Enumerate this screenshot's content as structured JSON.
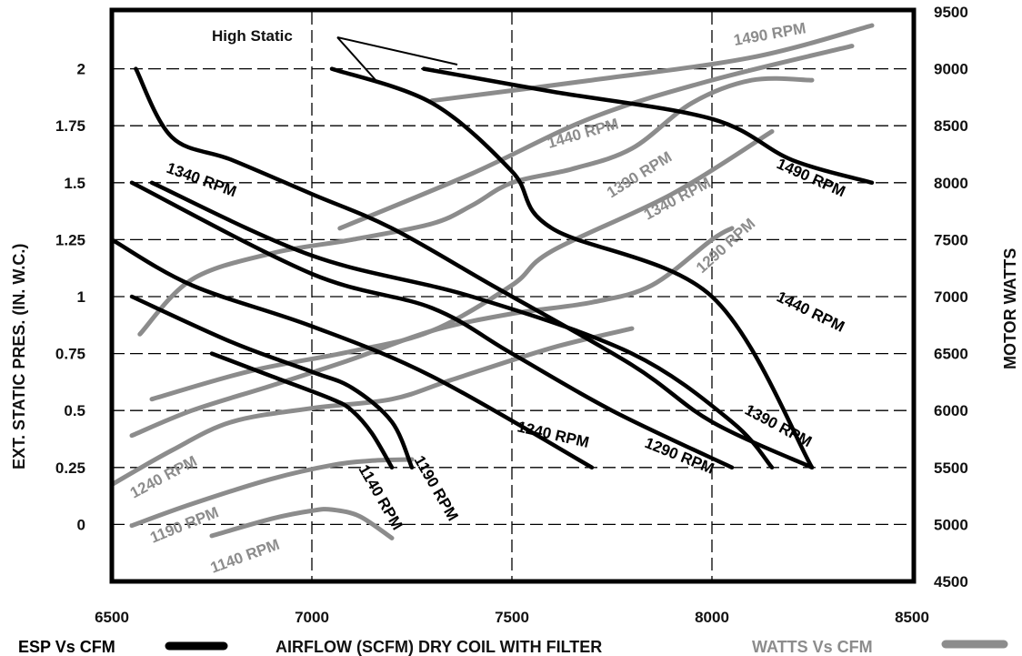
{
  "chart_data": {
    "type": "line",
    "xlabel": "AIRFLOW (SCFM) DRY COIL WITH FILTER",
    "ylabel": "EXT. STATIC PRES. (IN. W.C.)",
    "y2label": "MOTOR WATTS",
    "xlim": [
      6500,
      8500
    ],
    "ylim": [
      -0.25,
      2.25
    ],
    "y2lim": [
      4500,
      9500
    ],
    "xticks": [
      "6500",
      "7000",
      "7500",
      "8000",
      "8500"
    ],
    "yticks": [
      "0",
      "0.25",
      "0.5",
      "0.75",
      "1",
      "1.25",
      "1.5",
      "1.75",
      "2"
    ],
    "y2ticks": [
      "4500",
      "5000",
      "5500",
      "6000",
      "6500",
      "7000",
      "7500",
      "8000",
      "8500",
      "9000",
      "9500"
    ],
    "grid": true,
    "annotation": "High Static",
    "legend": {
      "esp_label": "ESP Vs CFM",
      "watts_label": "WATTS Vs CFM",
      "esp_color": "#000000",
      "watts_color": "#8c8c8c"
    },
    "esp_series": [
      {
        "name": "1140 RPM",
        "points": [
          [
            6750,
            0.75
          ],
          [
            6900,
            0.65
          ],
          [
            7050,
            0.55
          ],
          [
            7100,
            0.5
          ],
          [
            7150,
            0.4
          ],
          [
            7200,
            0.25
          ]
        ]
      },
      {
        "name": "1190 RPM",
        "points": [
          [
            6550,
            1.0
          ],
          [
            6800,
            0.8
          ],
          [
            7000,
            0.67
          ],
          [
            7100,
            0.6
          ],
          [
            7200,
            0.45
          ],
          [
            7250,
            0.25
          ]
        ]
      },
      {
        "name": "1240 RPM",
        "points": [
          [
            6500,
            1.25
          ],
          [
            6700,
            1.05
          ],
          [
            7000,
            0.87
          ],
          [
            7300,
            0.65
          ],
          [
            7700,
            0.25
          ]
        ]
      },
      {
        "name": "1290 RPM",
        "points": [
          [
            6550,
            1.5
          ],
          [
            7000,
            1.1
          ],
          [
            7300,
            0.95
          ],
          [
            7500,
            0.75
          ],
          [
            7750,
            0.5
          ],
          [
            8050,
            0.25
          ]
        ]
      },
      {
        "name": "1340 RPM",
        "points": [
          [
            6600,
            1.5
          ],
          [
            7000,
            1.18
          ],
          [
            7400,
            1.0
          ],
          [
            7800,
            0.75
          ],
          [
            8050,
            0.45
          ],
          [
            8150,
            0.25
          ]
        ]
      },
      {
        "name": "1390 RPM",
        "points": [
          [
            7050,
            2.0
          ],
          [
            7300,
            1.85
          ],
          [
            7500,
            1.55
          ],
          [
            7600,
            1.3
          ],
          [
            8000,
            1.0
          ],
          [
            8250,
            0.25
          ]
        ]
      },
      {
        "name": "1440 RPM",
        "points": [
          [
            6560,
            2.0
          ],
          [
            6650,
            1.7
          ],
          [
            6800,
            1.6
          ],
          [
            7000,
            1.45
          ],
          [
            7200,
            1.3
          ],
          [
            7450,
            1.05
          ],
          [
            7800,
            0.7
          ],
          [
            8000,
            0.45
          ],
          [
            8250,
            0.25
          ]
        ]
      },
      {
        "name": "1490 RPM",
        "points": [
          [
            7280,
            2.0
          ],
          [
            7600,
            1.9
          ],
          [
            8000,
            1.78
          ],
          [
            8200,
            1.6
          ],
          [
            8400,
            1.5
          ]
        ]
      }
    ],
    "esp_labels": [
      "1140 RPM",
      "1190 RPM",
      "1240 RPM",
      "1290 RPM",
      "1340 RPM",
      "1390 RPM",
      "1440 RPM",
      "1490 RPM"
    ],
    "watts_series": [
      {
        "name": "1140 RPM",
        "points": [
          [
            6750,
            4900
          ],
          [
            6900,
            5050
          ],
          [
            7000,
            5120
          ],
          [
            7050,
            5130
          ],
          [
            7120,
            5070
          ],
          [
            7200,
            4880
          ]
        ]
      },
      {
        "name": "1190 RPM",
        "points": [
          [
            6550,
            4990
          ],
          [
            6700,
            5180
          ],
          [
            6900,
            5400
          ],
          [
            7050,
            5520
          ],
          [
            7150,
            5560
          ],
          [
            7250,
            5570
          ]
        ]
      },
      {
        "name": "1240 RPM",
        "points": [
          [
            6500,
            5350
          ],
          [
            6650,
            5650
          ],
          [
            6800,
            5900
          ],
          [
            7000,
            6020
          ],
          [
            7200,
            6100
          ],
          [
            7350,
            6270
          ],
          [
            7600,
            6550
          ],
          [
            7800,
            6720
          ]
        ]
      },
      {
        "name": "1290 RPM",
        "points": [
          [
            6550,
            5780
          ],
          [
            6700,
            6000
          ],
          [
            6900,
            6220
          ],
          [
            7100,
            6450
          ],
          [
            7300,
            6700
          ],
          [
            7500,
            6850
          ],
          [
            7700,
            6950
          ],
          [
            7850,
            7100
          ],
          [
            8000,
            7500
          ],
          [
            8050,
            7600
          ]
        ]
      },
      {
        "name": "1340 RPM",
        "points": [
          [
            6600,
            6100
          ],
          [
            6850,
            6350
          ],
          [
            7100,
            6520
          ],
          [
            7300,
            6700
          ],
          [
            7500,
            7100
          ],
          [
            7600,
            7400
          ],
          [
            7900,
            7900
          ],
          [
            8150,
            8450
          ]
        ]
      },
      {
        "name": "1390 RPM",
        "points": [
          [
            6570,
            6670
          ],
          [
            6700,
            7150
          ],
          [
            6900,
            7380
          ],
          [
            7100,
            7500
          ],
          [
            7300,
            7640
          ],
          [
            7400,
            7800
          ],
          [
            7500,
            8000
          ],
          [
            7650,
            8120
          ],
          [
            7800,
            8300
          ],
          [
            7950,
            8700
          ],
          [
            8100,
            8900
          ],
          [
            8250,
            8900
          ]
        ]
      },
      {
        "name": "1440 RPM",
        "points": [
          [
            7070,
            7600
          ],
          [
            7400,
            8080
          ],
          [
            7700,
            8570
          ],
          [
            8000,
            8900
          ],
          [
            8350,
            9200
          ]
        ]
      },
      {
        "name": "1490 RPM",
        "points": [
          [
            7300,
            8720
          ],
          [
            7700,
            8900
          ],
          [
            8100,
            9100
          ],
          [
            8400,
            9380
          ]
        ]
      }
    ],
    "watts_labels": [
      "1140 RPM",
      "1190 RPM",
      "1240 RPM",
      "1290 RPM",
      "1340 RPM",
      "1390 RPM",
      "1440 RPM",
      "1490 RPM"
    ]
  }
}
